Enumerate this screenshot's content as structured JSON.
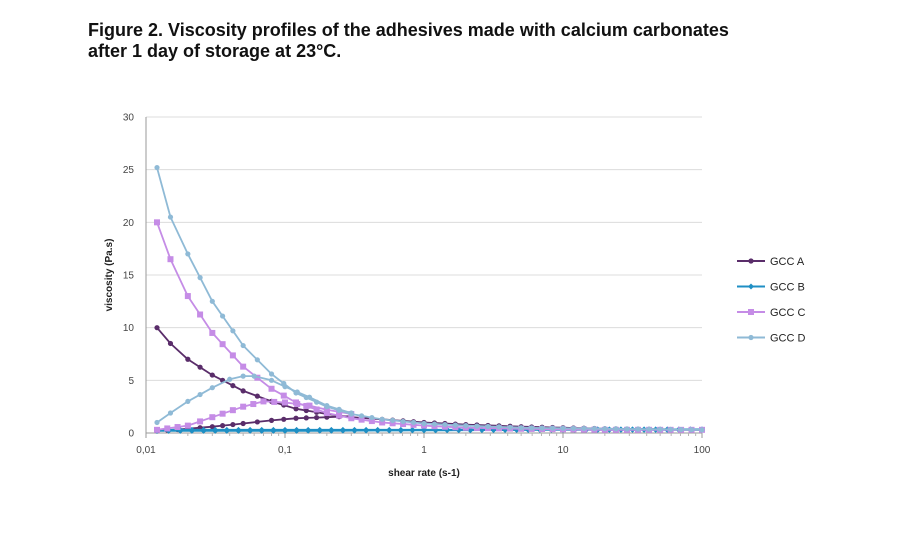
{
  "figure": {
    "title_line1": "Figure 2. Viscosity profiles of the adhesives made with calcium carbonates",
    "title_line2": "after 1 day of storage at 23°C."
  },
  "chart_data": {
    "type": "line",
    "xscale": "log",
    "xlabel": "shear rate (s-1)",
    "ylabel": "viscosity (Pa.s)",
    "xlim": [
      0.01,
      100
    ],
    "ylim": [
      0,
      30
    ],
    "xticks": [
      0.01,
      0.1,
      1,
      10,
      100
    ],
    "xtick_labels": [
      "0,01",
      "0,1",
      "1",
      "10",
      "100"
    ],
    "yticks": [
      0,
      5,
      10,
      15,
      20,
      25,
      30
    ],
    "ytick_labels": [
      "0",
      "5",
      "10",
      "15",
      "20",
      "25",
      "30"
    ],
    "grid": "horizontal",
    "legend_position": "right",
    "series": [
      {
        "name": "GCC A",
        "color": "#5a2d6a",
        "marker": "circle",
        "up": {
          "x": [
            0.012,
            0.02,
            0.03,
            0.05,
            0.08,
            0.12,
            0.2,
            0.3
          ],
          "y": [
            0.2,
            0.4,
            0.6,
            0.9,
            1.2,
            1.4,
            1.5,
            1.6
          ]
        },
        "down": {
          "x": [
            0.012,
            0.015,
            0.02,
            0.03,
            0.05,
            0.08,
            0.12,
            0.2,
            0.3,
            0.5,
            1,
            2,
            5,
            10,
            20,
            50,
            100
          ],
          "y": [
            10,
            8.5,
            7,
            5.5,
            4,
            3,
            2.3,
            1.8,
            1.5,
            1.3,
            1.0,
            0.8,
            0.6,
            0.5,
            0.4,
            0.35,
            0.3
          ]
        }
      },
      {
        "name": "GCC B",
        "color": "#1f8fc4",
        "marker": "diamond",
        "up": {
          "x": [
            0.012,
            0.1,
            1,
            10,
            100
          ],
          "y": [
            0.2,
            0.2,
            0.25,
            0.3,
            0.3
          ]
        },
        "down": {
          "x": [
            0.012,
            0.1,
            1,
            10,
            100
          ],
          "y": [
            0.3,
            0.3,
            0.3,
            0.35,
            0.35
          ]
        }
      },
      {
        "name": "GCC C",
        "color": "#c58ce6",
        "marker": "square",
        "up": {
          "x": [
            0.012,
            0.02,
            0.03,
            0.05,
            0.07,
            0.1,
            0.15,
            0.2,
            0.3
          ],
          "y": [
            0.3,
            0.7,
            1.5,
            2.5,
            3.0,
            2.9,
            2.6,
            2.2,
            1.8
          ]
        },
        "down": {
          "x": [
            0.012,
            0.015,
            0.02,
            0.03,
            0.05,
            0.08,
            0.12,
            0.2,
            0.3,
            0.5,
            1,
            2,
            5,
            10,
            20,
            50,
            100
          ],
          "y": [
            20,
            16.5,
            13,
            9.5,
            6.3,
            4.2,
            2.9,
            1.9,
            1.4,
            1.0,
            0.7,
            0.5,
            0.4,
            0.35,
            0.3,
            0.3,
            0.3
          ]
        }
      },
      {
        "name": "GCC D",
        "color": "#8fbad6",
        "marker": "circle",
        "up": {
          "x": [
            0.012,
            0.015,
            0.02,
            0.03,
            0.04,
            0.05,
            0.06,
            0.08,
            0.1,
            0.15,
            0.2,
            0.3
          ],
          "y": [
            1.0,
            1.9,
            3.0,
            4.3,
            5.1,
            5.4,
            5.4,
            5.0,
            4.4,
            3.4,
            2.6,
            1.9
          ]
        },
        "down": {
          "x": [
            0.012,
            0.015,
            0.02,
            0.03,
            0.05,
            0.08,
            0.12,
            0.2,
            0.3,
            0.5,
            1,
            2,
            5,
            10,
            20,
            50,
            100
          ],
          "y": [
            25.2,
            20.5,
            17,
            12.5,
            8.3,
            5.6,
            3.8,
            2.5,
            1.8,
            1.3,
            0.9,
            0.7,
            0.5,
            0.45,
            0.4,
            0.35,
            0.3
          ]
        }
      }
    ]
  }
}
